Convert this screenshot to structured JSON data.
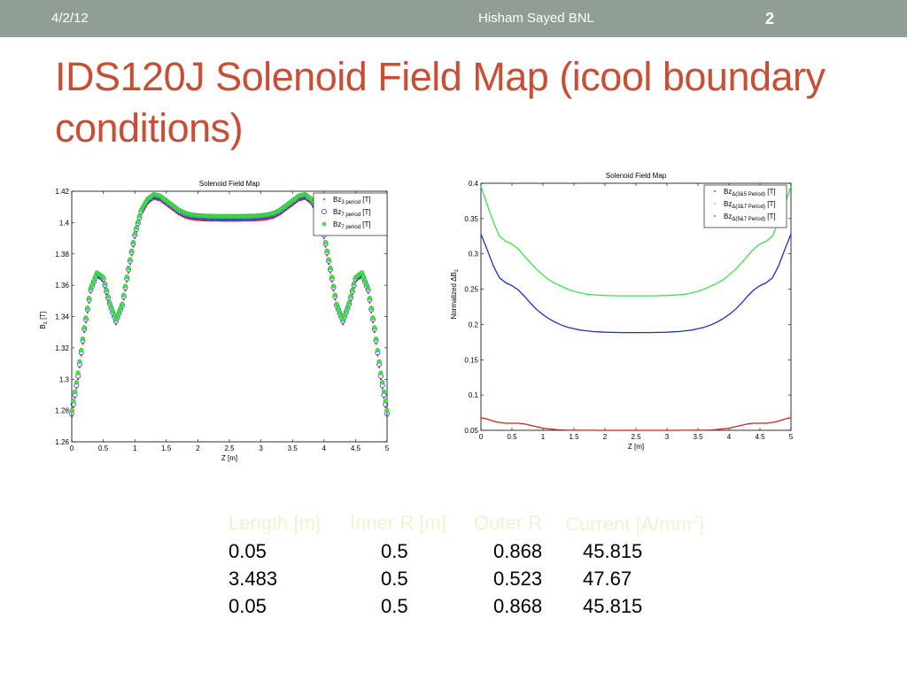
{
  "header": {
    "date": "4/2/12",
    "author": "Hisham Sayed BNL",
    "page_number": "2"
  },
  "slide": {
    "title": "IDS120J Solenoid Field Map (icool boundary conditions)"
  },
  "chart_data": [
    {
      "type": "scatter",
      "title": "Solenoid Field Map",
      "xlabel": "Z [m]",
      "ylabel": "B",
      "ylabel_sub": "z",
      "ylabel_unit": " [T]",
      "xlim": [
        0,
        5
      ],
      "ylim": [
        1.26,
        1.42
      ],
      "xticks": [
        "0",
        "0.5",
        "1",
        "1.5",
        "2",
        "2.5",
        "3",
        "3.5",
        "4",
        "4.5",
        "5"
      ],
      "yticks": [
        "1.26",
        "1.28",
        "1.3",
        "1.32",
        "1.34",
        "1.36",
        "1.38",
        "1.4",
        "1.42"
      ],
      "grid": false,
      "legend_position": "top-right",
      "x": [
        0,
        0.1,
        0.2,
        0.3,
        0.4,
        0.5,
        0.6,
        0.7,
        0.8,
        0.9,
        1.0,
        1.1,
        1.2,
        1.3,
        1.4,
        1.5,
        1.6,
        1.7,
        1.8,
        1.9,
        2.0,
        2.1,
        2.2,
        2.3,
        2.4,
        2.5
      ],
      "series": [
        {
          "name": "Bz",
          "sub": "3 period",
          "unit": " [T]",
          "color": "#e8202a",
          "marker": "dot",
          "values": [
            1.276,
            1.3,
            1.33,
            1.355,
            1.366,
            1.362,
            1.346,
            1.335,
            1.345,
            1.368,
            1.39,
            1.405,
            1.412,
            1.415,
            1.414,
            1.411,
            1.408,
            1.405,
            1.403,
            1.402,
            1.4015,
            1.4012,
            1.4011,
            1.4011,
            1.401,
            1.401
          ]
        },
        {
          "name": "Bz",
          "sub": "7 period",
          "unit": " [T]",
          "color": "#2030c8",
          "marker": "circle",
          "values": [
            1.278,
            1.302,
            1.332,
            1.357,
            1.367,
            1.364,
            1.348,
            1.337,
            1.347,
            1.37,
            1.392,
            1.407,
            1.414,
            1.417,
            1.416,
            1.413,
            1.41,
            1.407,
            1.405,
            1.404,
            1.4035,
            1.4032,
            1.4031,
            1.403,
            1.403,
            1.403
          ]
        },
        {
          "name": "Bz",
          "sub": "7 period",
          "unit": " [T]",
          "color": "#3fe24a",
          "marker": "filled",
          "values": [
            1.28,
            1.304,
            1.333,
            1.358,
            1.368,
            1.365,
            1.349,
            1.338,
            1.348,
            1.371,
            1.393,
            1.408,
            1.415,
            1.418,
            1.417,
            1.414,
            1.411,
            1.408,
            1.406,
            1.405,
            1.4045,
            1.4042,
            1.4041,
            1.404,
            1.404,
            1.404
          ]
        }
      ]
    },
    {
      "type": "line",
      "title": "Solenoid Field Map",
      "xlabel": "Z [m]",
      "ylabel": "Normalized ΔB",
      "ylabel_sub": "z",
      "xlim": [
        0,
        5
      ],
      "ylim": [
        0.05,
        0.4
      ],
      "xticks": [
        "0",
        "0.5",
        "1",
        "1.5",
        "2",
        "2.5",
        "3",
        "3.5",
        "4",
        "4.5",
        "5"
      ],
      "yticks": [
        "0.05",
        "0.1",
        "0.15",
        "0.2",
        "0.25",
        "0.3",
        "0.35",
        "0.4"
      ],
      "grid": false,
      "legend_position": "top-right",
      "x": [
        0,
        0.1,
        0.2,
        0.3,
        0.4,
        0.5,
        0.6,
        0.7,
        0.8,
        0.9,
        1.0,
        1.1,
        1.2,
        1.3,
        1.4,
        1.5,
        1.6,
        1.7,
        1.8,
        1.9,
        2.0,
        2.1,
        2.2,
        2.3,
        2.4,
        2.5
      ],
      "series": [
        {
          "name": "Bz",
          "sub": "Δ(3&5 Period)",
          "unit": " [T]",
          "color": "#2030c8",
          "values": [
            0.328,
            0.306,
            0.283,
            0.266,
            0.259,
            0.255,
            0.249,
            0.24,
            0.23,
            0.221,
            0.214,
            0.208,
            0.203,
            0.199,
            0.196,
            0.194,
            0.192,
            0.191,
            0.19,
            0.1895,
            0.189,
            0.1888,
            0.1886,
            0.1885,
            0.1885,
            0.1885
          ]
        },
        {
          "name": "Bz",
          "sub": "Δ(3&7 Period)",
          "unit": " [T]",
          "color": "#3fe24a",
          "values": [
            0.396,
            0.37,
            0.345,
            0.325,
            0.318,
            0.314,
            0.307,
            0.297,
            0.287,
            0.278,
            0.27,
            0.263,
            0.258,
            0.254,
            0.25,
            0.247,
            0.245,
            0.243,
            0.242,
            0.2415,
            0.241,
            0.2408,
            0.2406,
            0.2405,
            0.2405,
            0.2405
          ]
        },
        {
          "name": "Bz",
          "sub": "Δ(5&7 Period)",
          "unit": " [T]",
          "color": "#d42020",
          "values": [
            0.068,
            0.066,
            0.063,
            0.061,
            0.06,
            0.06,
            0.06,
            0.059,
            0.057,
            0.055,
            0.053,
            0.052,
            0.051,
            0.0505,
            0.0503,
            0.0502,
            0.0501,
            0.0501,
            0.0501,
            0.05,
            0.05,
            0.05,
            0.05,
            0.05,
            0.05,
            0.05
          ]
        }
      ]
    }
  ],
  "table": {
    "headers": [
      "Length [m]",
      "Inner R [m]",
      "Outer R",
      "Current [A/mm",
      "2",
      "]"
    ],
    "rows": [
      [
        "0.05",
        "0.5",
        "0.868",
        "45.815"
      ],
      [
        "3.483",
        "0.5",
        "0.523",
        "47.67"
      ],
      [
        "0.05",
        "0.5",
        "0.868",
        "45.815"
      ]
    ]
  }
}
